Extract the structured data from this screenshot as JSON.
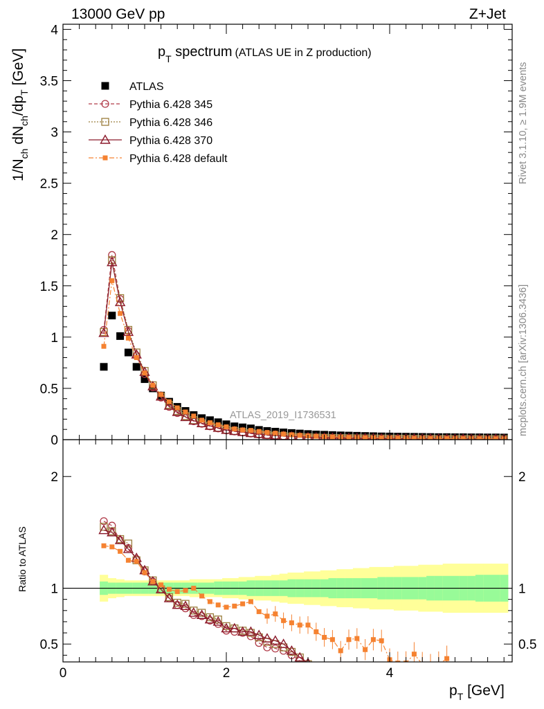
{
  "header": {
    "left": "13000 GeV pp",
    "right": "Z+Jet"
  },
  "side": {
    "rivet": "Rivet 3.1.10, ≥ 1.9M events",
    "mcplots": "mcplots.cern.ch [arXiv:1306.3436]"
  },
  "watermark": "ATLAS_2019_I1736531",
  "colors": {
    "atlas": "#000000",
    "p345": "#b03a48",
    "p346": "#9a7d3c",
    "p370": "#8b1a2b",
    "pdef": "#f58231",
    "band_inner": "#98fb98",
    "band_outer": "#ffff99"
  },
  "chart_data": [
    {
      "name": "main",
      "type": "scatter",
      "title": "p_T spectrum (ATLAS UE in Z production)",
      "title_main": "p",
      "title_sub": "T",
      "title_rest": " spectrum",
      "title_paren": "(ATLAS UE in Z production)",
      "ylabel": "1/N_ch dN_ch/dp_T [GeV]",
      "ylabel_parts": {
        "a": "1/N",
        "a_sub": "ch",
        "b": " dN",
        "b_sub": "ch",
        "c": "/dp",
        "c_sub": "T",
        "d": " [GeV]"
      },
      "xlim": [
        0,
        5.5
      ],
      "ylim": [
        0,
        4.05
      ],
      "ytick_values": [
        0,
        0.5,
        1,
        1.5,
        2,
        2.5,
        3,
        3.5,
        4
      ],
      "ytick_labels": [
        "0",
        "0.5",
        "1",
        "1.5",
        "2",
        "2.5",
        "3",
        "3.5",
        "4"
      ],
      "x": [
        0.5,
        0.6,
        0.7,
        0.8,
        0.9,
        1.0,
        1.1,
        1.2,
        1.3,
        1.4,
        1.5,
        1.6,
        1.7,
        1.8,
        1.9,
        2.0,
        2.1,
        2.2,
        2.3,
        2.4,
        2.5,
        2.6,
        2.7,
        2.8,
        2.9,
        3.0,
        3.1,
        3.2,
        3.3,
        3.4,
        3.5,
        3.6,
        3.7,
        3.8,
        3.9,
        4.0,
        4.1,
        4.2,
        4.3,
        4.4,
        4.5,
        4.6,
        4.7,
        4.8,
        4.9,
        5.0,
        5.1,
        5.2,
        5.3,
        5.4
      ],
      "legend": [
        "ATLAS",
        "Pythia 6.428 345",
        "Pythia 6.428 346",
        "Pythia 6.428 370",
        "Pythia 6.428 default"
      ],
      "legend_position": "top-left",
      "series": [
        {
          "name": "ATLAS",
          "style": "data",
          "values": [
            0.71,
            1.21,
            1.01,
            0.85,
            0.71,
            0.59,
            0.5,
            0.43,
            0.37,
            0.32,
            0.28,
            0.24,
            0.21,
            0.19,
            0.17,
            0.15,
            0.13,
            0.12,
            0.11,
            0.095,
            0.085,
            0.078,
            0.071,
            0.065,
            0.06,
            0.055,
            0.051,
            0.048,
            0.045,
            0.042,
            0.04,
            0.038,
            0.036,
            0.034,
            0.032,
            0.031,
            0.03,
            0.029,
            0.028,
            0.027,
            0.026,
            0.025,
            0.025,
            0.024,
            0.024,
            0.023,
            0.023,
            0.022,
            0.022,
            0.021
          ]
        },
        {
          "name": "Pythia 6.428 345",
          "style": "circle",
          "values": [
            1.07,
            1.8,
            1.37,
            1.06,
            0.82,
            0.64,
            0.51,
            0.41,
            0.32,
            0.26,
            0.22,
            0.18,
            0.155,
            0.13,
            0.11,
            0.09,
            0.08,
            0.07,
            0.06,
            0.05,
            0.043,
            0.038,
            0.033,
            0.029,
            0.025,
            0.022,
            0.02,
            0.018,
            0.016,
            0.015,
            0.014,
            0.013,
            0.012,
            0.011,
            0.01,
            0.0095,
            0.009,
            0.0085,
            0.008,
            0.0077,
            0.0074,
            0.0071,
            0.0068,
            0.0066,
            0.0064,
            0.0062,
            0.006,
            0.0058,
            0.0056,
            0.0054
          ]
        },
        {
          "name": "Pythia 6.428 346",
          "style": "square",
          "values": [
            1.05,
            1.75,
            1.38,
            1.07,
            0.85,
            0.67,
            0.53,
            0.42,
            0.34,
            0.28,
            0.23,
            0.19,
            0.16,
            0.135,
            0.115,
            0.095,
            0.085,
            0.075,
            0.065,
            0.054,
            0.046,
            0.04,
            0.035,
            0.03,
            0.026,
            0.023,
            0.021,
            0.019,
            0.017,
            0.016,
            0.015,
            0.014,
            0.013,
            0.012,
            0.011,
            0.01,
            0.0095,
            0.009,
            0.0086,
            0.0082,
            0.0078,
            0.0075,
            0.0072,
            0.0069,
            0.0066,
            0.0064,
            0.0062,
            0.006,
            0.0058,
            0.0056
          ]
        },
        {
          "name": "Pythia 6.428 370",
          "style": "triangle",
          "values": [
            1.04,
            1.73,
            1.34,
            1.05,
            0.83,
            0.66,
            0.52,
            0.42,
            0.33,
            0.27,
            0.22,
            0.185,
            0.16,
            0.135,
            0.115,
            0.095,
            0.084,
            0.074,
            0.064,
            0.055,
            0.047,
            0.041,
            0.036,
            0.031,
            0.027,
            0.024,
            0.021,
            0.019,
            0.017,
            0.016,
            0.015,
            0.014,
            0.013,
            0.012,
            0.011,
            0.01,
            0.0095,
            0.009,
            0.0086,
            0.0082,
            0.0078,
            0.0075,
            0.0072,
            0.0069,
            0.0066,
            0.0064,
            0.0062,
            0.006,
            0.0058,
            0.0056
          ]
        },
        {
          "name": "Pythia 6.428 default",
          "style": "smallsquare",
          "values": [
            0.91,
            1.55,
            1.23,
            0.99,
            0.8,
            0.65,
            0.53,
            0.44,
            0.37,
            0.31,
            0.27,
            0.23,
            0.19,
            0.165,
            0.145,
            0.125,
            0.105,
            0.095,
            0.09,
            0.08,
            0.07,
            0.063,
            0.055,
            0.048,
            0.042,
            0.037,
            0.033,
            0.029,
            0.026,
            0.024,
            0.022,
            0.02,
            0.018,
            0.017,
            0.016,
            0.015,
            0.014,
            0.013,
            0.0125,
            0.012,
            0.0115,
            0.011,
            0.0105,
            0.01,
            0.0098,
            0.0095,
            0.0092,
            0.009,
            0.0088,
            0.0085
          ]
        }
      ]
    },
    {
      "name": "ratio",
      "type": "scatter",
      "ylabel": "Ratio to ATLAS",
      "xlabel": "p_T [GeV]",
      "xlabel_main": "p",
      "xlabel_sub": "T",
      "xlabel_rest": " [GeV]",
      "xlim": [
        0,
        5.5
      ],
      "ylim": [
        0.34,
        2.33
      ],
      "ytick_values": [
        0.5,
        1,
        2
      ],
      "ytick_labels": [
        "0.5",
        "1",
        "2"
      ],
      "xtick_values": [
        0,
        2,
        4
      ],
      "xtick_labels": [
        "0",
        "2",
        "4"
      ],
      "reference": 1,
      "band_x": [
        0.45,
        0.55,
        0.65,
        0.75,
        0.85,
        0.95,
        1.05,
        1.15,
        1.25,
        1.35,
        1.45,
        1.55,
        1.65,
        1.75,
        1.85,
        1.95,
        2.05,
        2.15,
        2.25,
        2.35,
        2.45,
        2.55,
        2.65,
        2.75,
        2.85,
        2.95,
        3.05,
        3.15,
        3.25,
        3.35,
        3.45,
        3.55,
        3.65,
        3.75,
        3.85,
        3.95,
        4.05,
        4.15,
        4.25,
        4.35,
        4.45,
        4.55,
        4.65,
        4.75,
        4.85,
        4.95,
        5.05,
        5.15,
        5.25,
        5.35,
        5.45
      ],
      "band_inner": [
        0.06,
        0.05,
        0.05,
        0.05,
        0.05,
        0.05,
        0.05,
        0.05,
        0.05,
        0.05,
        0.05,
        0.05,
        0.05,
        0.05,
        0.06,
        0.06,
        0.06,
        0.06,
        0.07,
        0.07,
        0.07,
        0.07,
        0.07,
        0.08,
        0.08,
        0.08,
        0.08,
        0.08,
        0.09,
        0.09,
        0.09,
        0.09,
        0.09,
        0.09,
        0.1,
        0.1,
        0.1,
        0.1,
        0.1,
        0.1,
        0.11,
        0.11,
        0.11,
        0.11,
        0.11,
        0.11,
        0.12,
        0.12,
        0.12,
        0.12
      ],
      "band_outer": [
        0.12,
        0.09,
        0.08,
        0.07,
        0.07,
        0.07,
        0.07,
        0.07,
        0.07,
        0.07,
        0.07,
        0.08,
        0.08,
        0.08,
        0.08,
        0.09,
        0.09,
        0.1,
        0.1,
        0.11,
        0.11,
        0.12,
        0.13,
        0.14,
        0.14,
        0.15,
        0.15,
        0.16,
        0.16,
        0.17,
        0.17,
        0.18,
        0.18,
        0.19,
        0.19,
        0.19,
        0.2,
        0.2,
        0.2,
        0.21,
        0.21,
        0.21,
        0.22,
        0.22,
        0.22,
        0.22,
        0.22,
        0.22,
        0.22,
        0.22
      ],
      "x": [
        0.5,
        0.6,
        0.7,
        0.8,
        0.9,
        1.0,
        1.1,
        1.2,
        1.3,
        1.4,
        1.5,
        1.6,
        1.7,
        1.8,
        1.9,
        2.0,
        2.1,
        2.2,
        2.3,
        2.4,
        2.5,
        2.6,
        2.7,
        2.8,
        2.9,
        3.0,
        3.1,
        3.2,
        3.3,
        3.4,
        3.5,
        3.6,
        3.7,
        3.8,
        3.9,
        4.0,
        4.1,
        4.2,
        4.3,
        4.4,
        4.5,
        4.6,
        4.7
      ],
      "series": [
        {
          "name": "Pythia 6.428 345",
          "style": "circle",
          "values": [
            1.6,
            1.56,
            1.43,
            1.36,
            1.26,
            1.15,
            1.06,
            0.99,
            0.91,
            0.85,
            0.82,
            0.76,
            0.75,
            0.71,
            0.68,
            0.62,
            0.61,
            0.6,
            0.57,
            0.51,
            0.47,
            0.46,
            0.44,
            0.4,
            0.35
          ]
        },
        {
          "name": "Pythia 6.428 346",
          "style": "square",
          "values": [
            1.55,
            1.51,
            1.44,
            1.4,
            1.25,
            1.16,
            1.07,
            0.99,
            0.92,
            0.87,
            0.86,
            0.8,
            0.78,
            0.74,
            0.72,
            0.66,
            0.64,
            0.62,
            0.6,
            0.56,
            0.52,
            0.5,
            0.47,
            0.43,
            0.38,
            0.32
          ]
        },
        {
          "name": "Pythia 6.428 370",
          "style": "triangle",
          "values": [
            1.52,
            1.5,
            1.43,
            1.35,
            1.27,
            1.16,
            1.06,
            0.99,
            0.91,
            0.85,
            0.84,
            0.78,
            0.76,
            0.72,
            0.7,
            0.64,
            0.64,
            0.61,
            0.61,
            0.58,
            0.55,
            0.53,
            0.5,
            0.44,
            0.38,
            0.33
          ]
        },
        {
          "name": "Pythia 6.428 default",
          "style": "smallsquare",
          "values": [
            1.38,
            1.37,
            1.33,
            1.25,
            1.24,
            1.14,
            1.06,
            1.03,
            0.99,
            0.97,
            0.98,
            1.0,
            0.93,
            0.88,
            0.85,
            0.83,
            0.84,
            0.86,
            0.88,
            0.79,
            0.75,
            0.77,
            0.71,
            0.69,
            0.67,
            0.67,
            0.61,
            0.56,
            0.54,
            0.44,
            0.54,
            0.55,
            0.45,
            0.54,
            0.53,
            0.36,
            0.33,
            0.33,
            0.41,
            0.32,
            0.3,
            0.32,
            0.37
          ]
        }
      ]
    }
  ]
}
